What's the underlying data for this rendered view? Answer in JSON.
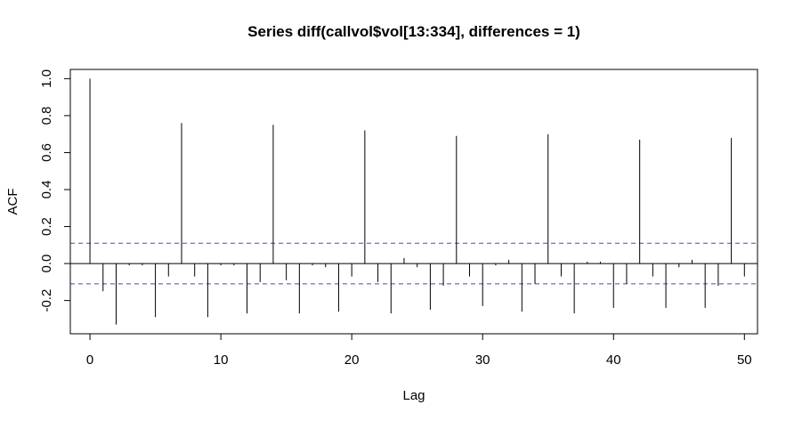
{
  "chart_data": {
    "type": "bar",
    "title": "Series  diff(callvol$vol[13:334], differences = 1)",
    "xlabel": "Lag",
    "ylabel": "ACF",
    "xlim": [
      -1.5,
      51
    ],
    "ylim": [
      -0.38,
      1.05
    ],
    "x_ticks": [
      0,
      10,
      20,
      30,
      40,
      50
    ],
    "x_tick_labels": [
      "0",
      "10",
      "20",
      "30",
      "40",
      "50"
    ],
    "y_ticks": [
      -0.2,
      0.0,
      0.2,
      0.4,
      0.6,
      0.8,
      1.0
    ],
    "y_tick_labels": [
      "-0.2",
      "0.0",
      "0.2",
      "0.4",
      "0.6",
      "0.8",
      "1.0"
    ],
    "confidence_band": 0.11,
    "band_color": "#4a4ab0",
    "bar_color": "#000000",
    "x": [
      0,
      1,
      2,
      3,
      4,
      5,
      6,
      7,
      8,
      9,
      10,
      11,
      12,
      13,
      14,
      15,
      16,
      17,
      18,
      19,
      20,
      21,
      22,
      23,
      24,
      25,
      26,
      27,
      28,
      29,
      30,
      31,
      32,
      33,
      34,
      35,
      36,
      37,
      38,
      39,
      40,
      41,
      42,
      43,
      44,
      45,
      46,
      47,
      48,
      49,
      50
    ],
    "values": [
      1.0,
      -0.15,
      -0.33,
      -0.01,
      -0.01,
      -0.29,
      -0.07,
      0.76,
      -0.07,
      -0.29,
      -0.01,
      -0.01,
      -0.27,
      -0.1,
      0.75,
      -0.09,
      -0.27,
      -0.01,
      -0.02,
      -0.26,
      -0.07,
      0.72,
      -0.1,
      -0.27,
      0.03,
      -0.02,
      -0.25,
      -0.12,
      0.69,
      -0.07,
      -0.23,
      -0.01,
      0.02,
      -0.26,
      -0.11,
      0.7,
      -0.07,
      -0.27,
      0.01,
      0.01,
      -0.24,
      -0.11,
      0.67,
      -0.07,
      -0.24,
      -0.02,
      0.02,
      -0.24,
      -0.12,
      0.68,
      -0.07
    ]
  }
}
